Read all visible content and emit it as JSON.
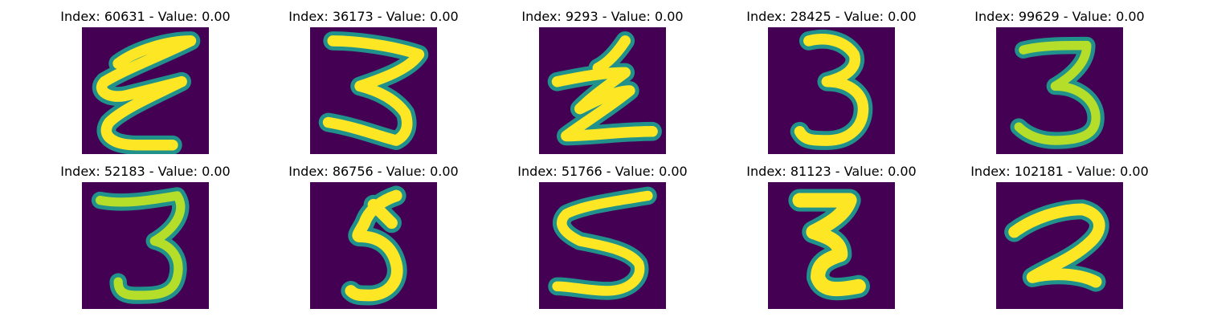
{
  "figure": {
    "colormap": "viridis",
    "background_color": "#440154",
    "stroke_colors": [
      "#21918c",
      "#5ec962",
      "#b5de2b",
      "#fde725"
    ],
    "panels": [
      {
        "title": "Index: 60631 - Value: 0.00",
        "digit": "handwritten-3"
      },
      {
        "title": "Index: 36173 - Value: 0.00",
        "digit": "handwritten-3"
      },
      {
        "title": "Index: 9293 - Value: 0.00",
        "digit": "handwritten-3"
      },
      {
        "title": "Index: 28425 - Value: 0.00",
        "digit": "handwritten-3"
      },
      {
        "title": "Index: 99629 - Value: 0.00",
        "digit": "handwritten-3"
      },
      {
        "title": "Index: 52183 - Value: 0.00",
        "digit": "handwritten-3"
      },
      {
        "title": "Index: 86756 - Value: 0.00",
        "digit": "handwritten-5"
      },
      {
        "title": "Index: 51766 - Value: 0.00",
        "digit": "handwritten-5"
      },
      {
        "title": "Index: 81123 - Value: 0.00",
        "digit": "handwritten-3"
      },
      {
        "title": "Index: 102181 - Value: 0.00",
        "digit": "handwritten-2"
      }
    ]
  }
}
